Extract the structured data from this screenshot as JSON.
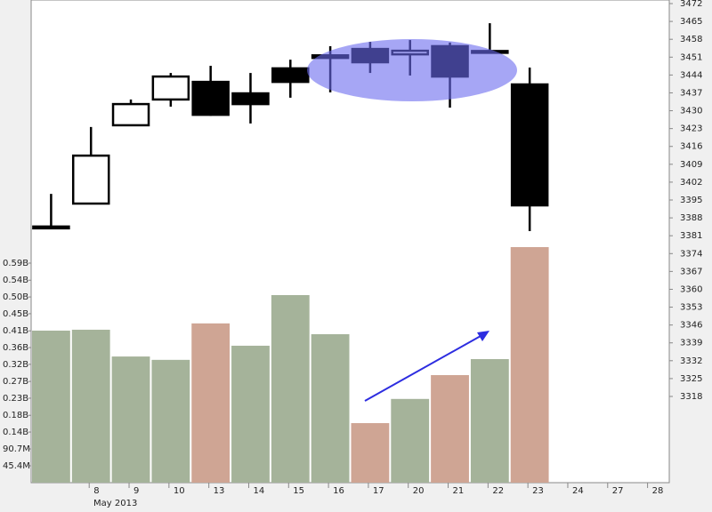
{
  "chart_data": {
    "type": "candlestick",
    "categories": [
      null,
      "8",
      "9",
      "10",
      "13",
      "14",
      "15",
      "16",
      "17",
      "20",
      "21",
      "22",
      "23",
      "24",
      "27",
      "28"
    ],
    "x_group_label": "May 2013",
    "open": [
      3384.6,
      3393.6,
      3424.3,
      3434.4,
      3441.3,
      3436.8,
      3446.6,
      3451.7,
      3454.2,
      3452.1,
      3455.3,
      3453.4,
      3440.3,
      null,
      null,
      null
    ],
    "high": [
      3397.4,
      3423.6,
      3434.4,
      3444.8,
      3447.6,
      3444.8,
      3450.0,
      3455.3,
      3457.0,
      3457.7,
      3456.7,
      3464.3,
      3446.9,
      null,
      null,
      null
    ],
    "low": [
      3384.0,
      3393.6,
      3424.3,
      3431.6,
      3428.0,
      3425.0,
      3435.1,
      3437.2,
      3444.8,
      3443.8,
      3431.2,
      3453.0,
      3382.8,
      null,
      null,
      null
    ],
    "close": [
      3384.2,
      3412.4,
      3432.6,
      3443.4,
      3428.4,
      3432.6,
      3441.3,
      3450.7,
      3449.0,
      3453.5,
      3443.4,
      3453.0,
      3392.9,
      null,
      null,
      null
    ],
    "up_color": "#ffffff",
    "down_color": "#000000",
    "ylim": [
      3284.2,
      3473.4
    ],
    "yticks": [
      3472,
      3465,
      3458,
      3451,
      3444,
      3437,
      3430,
      3423,
      3416,
      3409,
      3402,
      3395,
      3388,
      3381,
      3374,
      3367,
      3360,
      3353,
      3346,
      3339,
      3332,
      3325,
      3318
    ],
    "volume": {
      "axis": "y2",
      "values": [
        408600000,
        411000000,
        339000000,
        330000000,
        428000000,
        368000000,
        504000000,
        399000000,
        160000000,
        225000000,
        289000000,
        332000000,
        633000000,
        null,
        null,
        null
      ],
      "colors": [
        "#a5b39a",
        "#a5b39a",
        "#a5b39a",
        "#a5b39a",
        "#cfa594",
        "#a5b39a",
        "#a5b39a",
        "#a5b39a",
        "#cfa594",
        "#a5b39a",
        "#cfa594",
        "#a5b39a",
        "#cfa594",
        null,
        null,
        null
      ]
    },
    "y2lim": [
      0,
      1297000000
    ],
    "y2ticks": [
      {
        "value": 45400000,
        "label": "45.4M"
      },
      {
        "value": 90700000,
        "label": "90.7M"
      },
      {
        "value": 136000000,
        "label": "0.14B"
      },
      {
        "value": 181000000,
        "label": "0.18B"
      },
      {
        "value": 227000000,
        "label": "0.23B"
      },
      {
        "value": 272000000,
        "label": "0.27B"
      },
      {
        "value": 318000000,
        "label": "0.32B"
      },
      {
        "value": 363000000,
        "label": "0.36B"
      },
      {
        "value": 408000000,
        "label": "0.41B"
      },
      {
        "value": 454000000,
        "label": "0.45B"
      },
      {
        "value": 499000000,
        "label": "0.50B"
      },
      {
        "value": 544000000,
        "label": "0.54B"
      },
      {
        "value": 590000000,
        "label": "0.59B"
      }
    ]
  }
}
